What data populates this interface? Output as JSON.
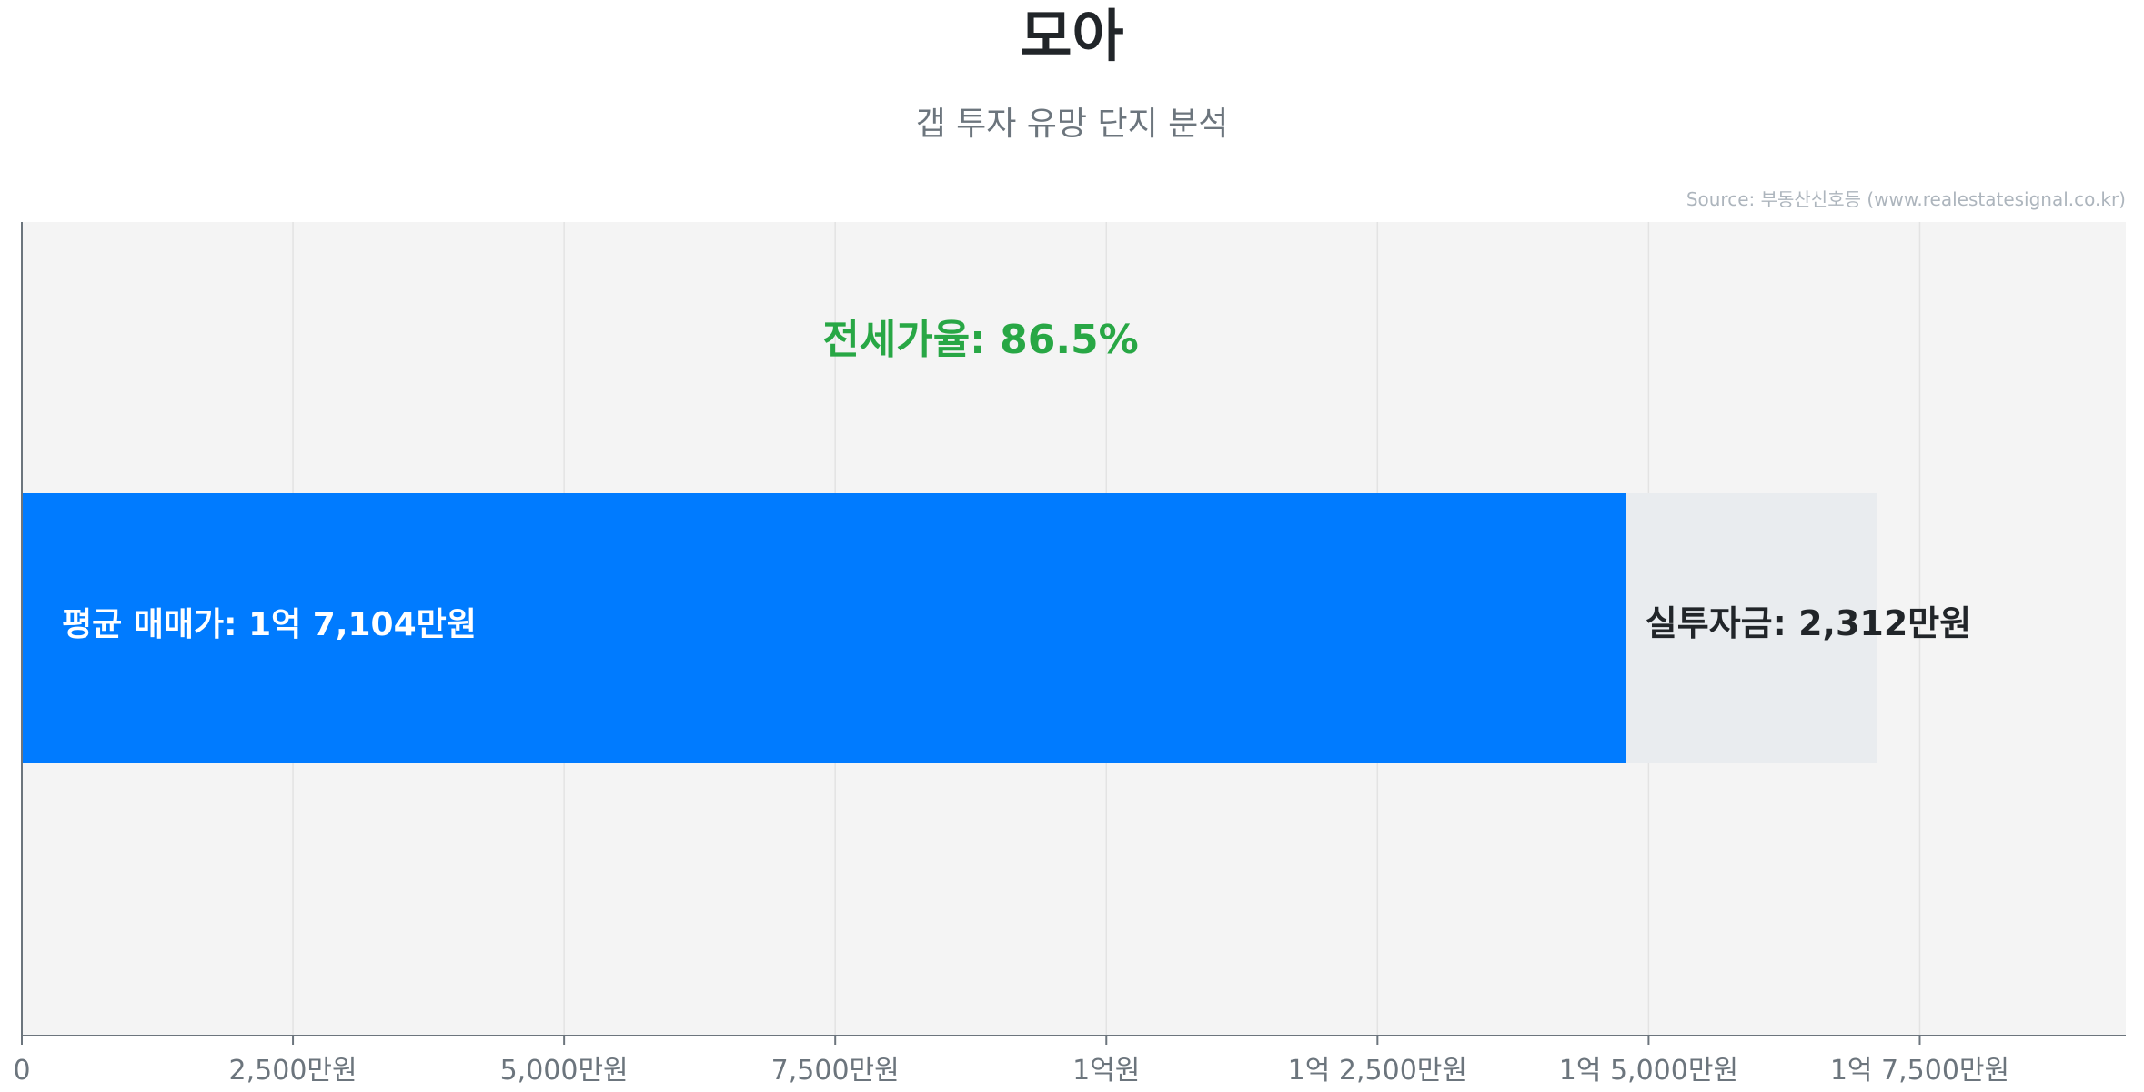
{
  "header": {
    "title": "모아",
    "subtitle": "갭 투자 유망 단지 분석"
  },
  "source": "Source: 부동산신호등 (www.realestatesignal.co.kr)",
  "colors": {
    "sale": "#007bff",
    "investment": "#e9ecef",
    "plot_bg": "#f4f4f4",
    "ratio": "#28a745"
  },
  "chart_data": {
    "type": "bar",
    "orientation": "horizontal",
    "stacked": true,
    "xunit": "만원",
    "xlim": [
      0,
      19400
    ],
    "grid": true,
    "xticks": [
      0,
      2500,
      5000,
      7500,
      10000,
      12500,
      15000,
      17500
    ],
    "xtick_labels": [
      "0",
      "2,500만원",
      "5,000만원",
      "7,500만원",
      "1억원",
      "1억 2,500만원",
      "1억 5,000만원",
      "1억 7,500만원"
    ],
    "series": [
      {
        "key": "jeonse",
        "value": 14792,
        "color": "#007bff"
      },
      {
        "key": "investment",
        "value": 2312,
        "color": "#e9ecef"
      }
    ],
    "sale_price": 17104,
    "annotations": {
      "ratio": "전세가율: 86.5%",
      "sale_label": "평균 매매가: 1억 7,104만원",
      "investment_label": "실투자금: 2,312만원"
    }
  }
}
